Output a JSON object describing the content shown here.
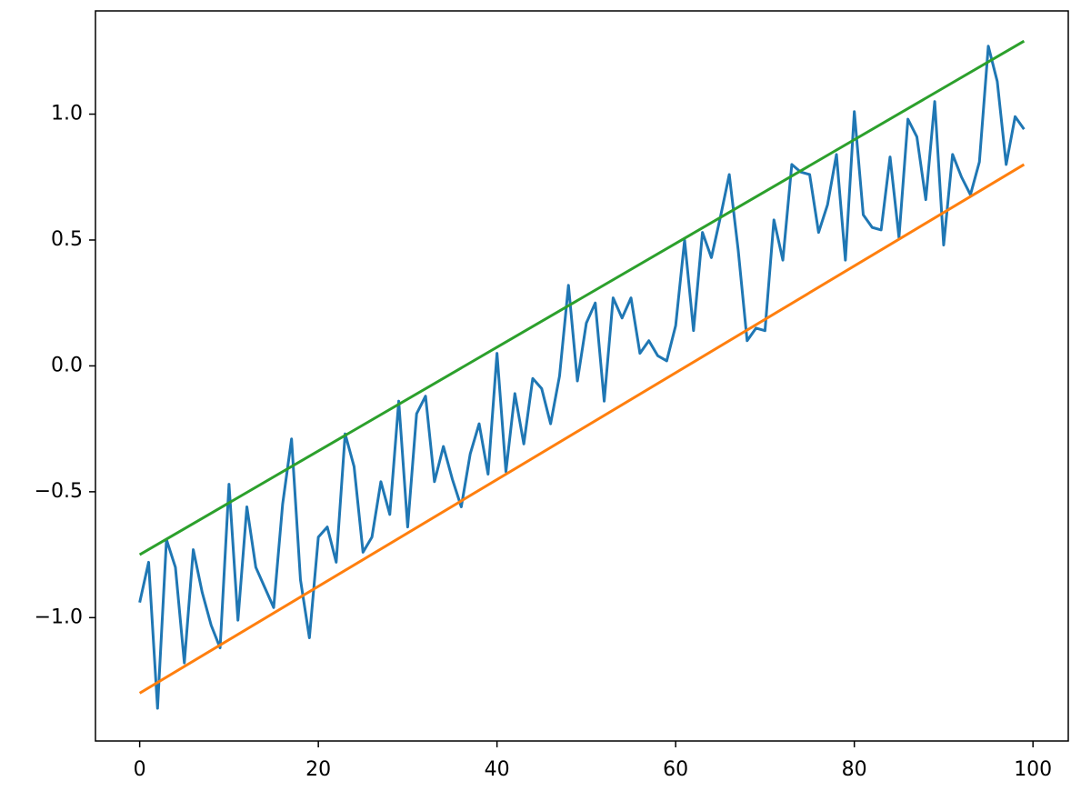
{
  "chart_data": {
    "type": "line",
    "series": [
      {
        "color": "#1f77b4",
        "x": [
          0,
          1,
          2,
          3,
          4,
          5,
          6,
          7,
          8,
          9,
          10,
          11,
          12,
          13,
          14,
          15,
          16,
          17,
          18,
          19,
          20,
          21,
          22,
          23,
          24,
          25,
          26,
          27,
          28,
          29,
          30,
          31,
          32,
          33,
          34,
          35,
          36,
          37,
          38,
          39,
          40,
          41,
          42,
          43,
          44,
          45,
          46,
          47,
          48,
          49,
          50,
          51,
          52,
          53,
          54,
          55,
          56,
          57,
          58,
          59,
          60,
          61,
          62,
          63,
          64,
          65,
          66,
          67,
          68,
          69,
          70,
          71,
          72,
          73,
          74,
          75,
          76,
          77,
          78,
          79,
          80,
          81,
          82,
          83,
          84,
          85,
          86,
          87,
          88,
          89,
          90,
          91,
          92,
          93,
          94,
          95,
          96,
          97,
          98,
          99
        ],
        "values": [
          -0.94,
          -0.78,
          -1.36,
          -0.69,
          -0.8,
          -1.18,
          -0.73,
          -0.9,
          -1.03,
          -1.12,
          -0.47,
          -1.01,
          -0.56,
          -0.8,
          -0.88,
          -0.96,
          -0.55,
          -0.29,
          -0.85,
          -1.08,
          -0.68,
          -0.64,
          -0.78,
          -0.27,
          -0.4,
          -0.74,
          -0.68,
          -0.46,
          -0.59,
          -0.14,
          -0.64,
          -0.19,
          -0.12,
          -0.46,
          -0.32,
          -0.45,
          -0.56,
          -0.35,
          -0.23,
          -0.43,
          0.05,
          -0.42,
          -0.11,
          -0.31,
          -0.05,
          -0.09,
          -0.23,
          -0.04,
          0.32,
          -0.06,
          0.17,
          0.25,
          -0.14,
          0.27,
          0.19,
          0.27,
          0.05,
          0.1,
          0.04,
          0.02,
          0.16,
          0.5,
          0.14,
          0.53,
          0.43,
          0.59,
          0.76,
          0.46,
          0.1,
          0.15,
          0.14,
          0.58,
          0.42,
          0.8,
          0.77,
          0.76,
          0.53,
          0.64,
          0.84,
          0.42,
          1.01,
          0.6,
          0.55,
          0.54,
          0.83,
          0.51,
          0.98,
          0.91,
          0.66,
          1.05,
          0.48,
          0.84,
          0.75,
          0.68,
          0.81,
          1.27,
          1.13,
          0.8,
          0.99,
          0.94
        ]
      },
      {
        "color": "#ff7f0e",
        "x": [
          0,
          99
        ],
        "values": [
          -1.3,
          0.8
        ]
      },
      {
        "color": "#2ca02c",
        "x": [
          0,
          99
        ],
        "values": [
          -0.75,
          1.29
        ]
      }
    ],
    "xlim": [
      -4.95,
      103.95
    ],
    "xticks": [
      0,
      20,
      40,
      60,
      80,
      100
    ],
    "ylim": [
      -1.49,
      1.41
    ],
    "yticks": [
      {
        "value": -1,
        "label": "−1.0"
      },
      {
        "value": -0.5,
        "label": "−0.5"
      },
      {
        "value": 0,
        "label": "0.0"
      },
      {
        "value": 0.5,
        "label": "0.5"
      },
      {
        "value": 1,
        "label": "1.0"
      }
    ]
  }
}
